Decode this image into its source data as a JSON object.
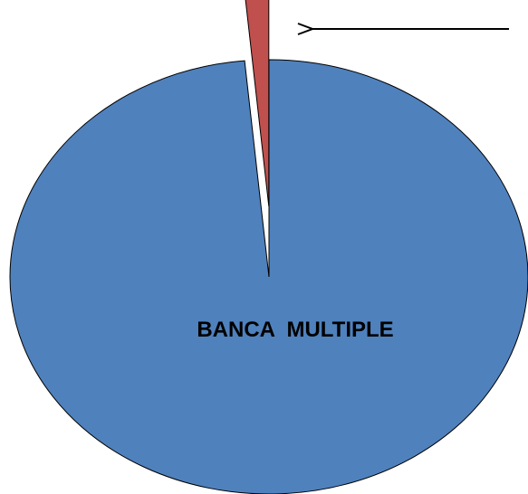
{
  "chart_data": {
    "type": "pie",
    "slices": [
      {
        "label": "BANCA  MULTIPLE",
        "value": 98.5,
        "color": "#4F81BD",
        "exploded": false
      },
      {
        "label": "",
        "value": 1.5,
        "color": "#C0504D",
        "exploded": true
      }
    ],
    "annotation": {
      "type": "arrow",
      "points_to_slice": 1
    },
    "legend": "none",
    "grid": false
  }
}
